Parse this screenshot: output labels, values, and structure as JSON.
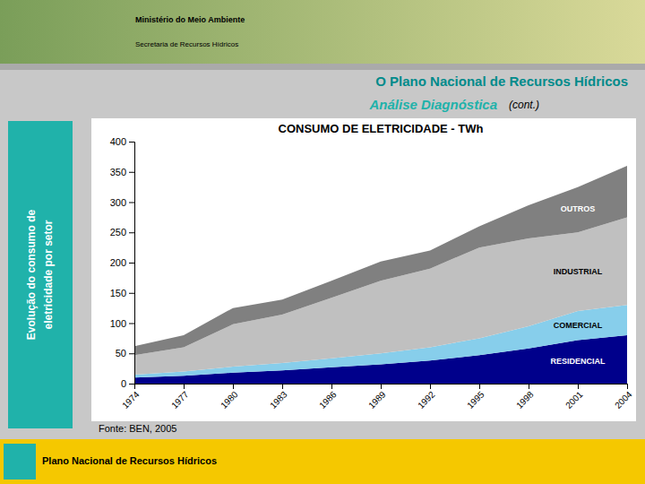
{
  "header_lines": [
    "Ministério do Meio Ambiente",
    "Secretaria de Recursos Hídricos"
  ],
  "slide_title": "O Plano Nacional de Recursos Hídricos",
  "slide_subtitle": "Análise Diagnóstica",
  "slide_subtitle_note": "(cont.)",
  "sidebar_lines": [
    "Evolução do consumo de",
    "eletricidade por setor"
  ],
  "source": "Fonte: BEN, 2005",
  "footer": "Plano Nacional de Recursos Hídricos",
  "chart_data": {
    "type": "area",
    "stacked": true,
    "title": "CONSUMO DE ELETRICIDADE - TWh",
    "x": [
      1974,
      1977,
      1980,
      1983,
      1986,
      1989,
      1992,
      1995,
      1998,
      2001,
      2004
    ],
    "series": [
      {
        "name": "RESIDENCIAL",
        "color": "#00008B",
        "values": [
          10,
          13,
          18,
          22,
          27,
          32,
          38,
          47,
          58,
          72,
          80
        ]
      },
      {
        "name": "COMERCIAL",
        "color": "#87CEEB",
        "values": [
          5,
          7,
          10,
          12,
          15,
          18,
          22,
          28,
          37,
          48,
          50
        ]
      },
      {
        "name": "INDUSTRIAL",
        "color": "#C0C0C0",
        "values": [
          32,
          40,
          70,
          80,
          100,
          120,
          130,
          150,
          145,
          130,
          145
        ]
      },
      {
        "name": "OUTROS",
        "color": "#808080",
        "values": [
          15,
          20,
          27,
          25,
          28,
          32,
          30,
          35,
          55,
          75,
          85
        ]
      }
    ],
    "xlim": [
      1974,
      2004
    ],
    "xticks": [
      1974,
      1977,
      1980,
      1983,
      1986,
      1989,
      1992,
      1995,
      1998,
      2001,
      2004
    ],
    "ylim": [
      0,
      400
    ],
    "yticks": [
      0,
      50,
      100,
      150,
      200,
      250,
      300,
      350,
      400
    ],
    "grid": false
  }
}
